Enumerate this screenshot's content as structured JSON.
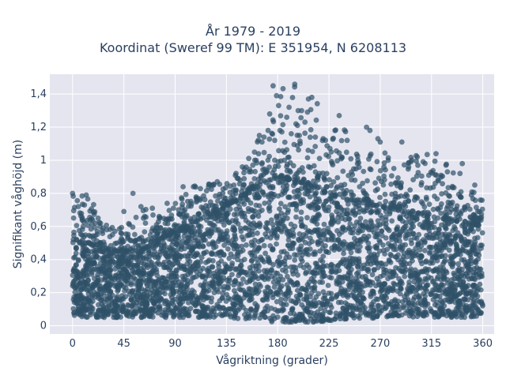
{
  "chart_data": {
    "type": "scatter",
    "title_line1": "År 1979 - 2019",
    "title_line2": "Koordinat (Sweref 99 TM): E 351954, N 6208113",
    "xlabel": "Vågriktning (grader)",
    "ylabel": "Signifikant våghöjd (m)",
    "xlim": [
      -20,
      370
    ],
    "ylim": [
      -0.05,
      1.52
    ],
    "x_ticks": [
      0,
      45,
      90,
      135,
      180,
      225,
      270,
      315,
      360
    ],
    "y_ticks": [
      0,
      0.2,
      0.4,
      0.6,
      0.8,
      1.0,
      1.2,
      1.4
    ],
    "y_tick_labels": [
      "0",
      "0,2",
      "0,4",
      "0,6",
      "0,8",
      "1",
      "1,2",
      "1,4"
    ],
    "grid": true,
    "marker_color": "#2f5168",
    "background_color": "#e5e5f0",
    "envelope": {
      "x": [
        0,
        15,
        30,
        45,
        60,
        75,
        90,
        105,
        120,
        135,
        150,
        165,
        180,
        195,
        210,
        225,
        240,
        255,
        270,
        285,
        300,
        315,
        330,
        345,
        360
      ],
      "dense_min": [
        0.06,
        0.05,
        0.05,
        0.05,
        0.05,
        0.05,
        0.05,
        0.05,
        0.05,
        0.05,
        0.04,
        0.03,
        0.02,
        0.02,
        0.02,
        0.03,
        0.04,
        0.04,
        0.05,
        0.05,
        0.05,
        0.05,
        0.05,
        0.05,
        0.06
      ],
      "dense_max": [
        0.5,
        0.5,
        0.45,
        0.45,
        0.45,
        0.52,
        0.56,
        0.62,
        0.66,
        0.72,
        0.78,
        0.85,
        0.9,
        0.88,
        0.84,
        0.8,
        0.76,
        0.74,
        0.72,
        0.7,
        0.68,
        0.66,
        0.64,
        0.62,
        0.6
      ],
      "max": [
        0.8,
        0.79,
        0.62,
        0.62,
        0.72,
        0.66,
        0.74,
        0.84,
        0.87,
        0.88,
        0.96,
        1.16,
        1.46,
        1.46,
        1.38,
        1.27,
        1.19,
        1.0,
        1.13,
        0.96,
        1.04,
        1.04,
        0.98,
        0.85,
        0.76
      ]
    },
    "outliers": [
      {
        "x": 176,
        "y": 1.45
      },
      {
        "x": 195,
        "y": 1.46
      },
      {
        "x": 179,
        "y": 1.39
      },
      {
        "x": 210,
        "y": 1.38
      },
      {
        "x": 207,
        "y": 1.37
      },
      {
        "x": 190,
        "y": 1.32
      },
      {
        "x": 198,
        "y": 1.3
      },
      {
        "x": 201,
        "y": 1.3
      },
      {
        "x": 234,
        "y": 1.27
      },
      {
        "x": 173,
        "y": 1.28
      },
      {
        "x": 196,
        "y": 1.22
      },
      {
        "x": 188,
        "y": 1.26
      },
      {
        "x": 258,
        "y": 1.2
      },
      {
        "x": 261,
        "y": 1.18
      },
      {
        "x": 182,
        "y": 1.18
      },
      {
        "x": 268,
        "y": 1.13
      },
      {
        "x": 270,
        "y": 1.11
      },
      {
        "x": 289,
        "y": 1.11
      },
      {
        "x": 199,
        "y": 1.15
      },
      {
        "x": 213,
        "y": 1.14
      },
      {
        "x": 220,
        "y": 1.13
      },
      {
        "x": 241,
        "y": 1.12
      },
      {
        "x": 164,
        "y": 1.15
      },
      {
        "x": 168,
        "y": 1.14
      },
      {
        "x": 319,
        "y": 1.04
      },
      {
        "x": 342,
        "y": 0.98
      },
      {
        "x": 303,
        "y": 0.97
      },
      {
        "x": 277,
        "y": 1.0
      },
      {
        "x": 282,
        "y": 0.95
      },
      {
        "x": 295,
        "y": 0.96
      },
      {
        "x": 329,
        "y": 0.93
      },
      {
        "x": 340,
        "y": 0.92
      },
      {
        "x": 250,
        "y": 0.98
      },
      {
        "x": 227,
        "y": 1.05
      },
      {
        "x": 236,
        "y": 1.02
      },
      {
        "x": 0,
        "y": 0.8
      },
      {
        "x": 12,
        "y": 0.79
      },
      {
        "x": 53,
        "y": 0.8
      },
      {
        "x": 83,
        "y": 0.74
      },
      {
        "x": 97,
        "y": 0.84
      },
      {
        "x": 106,
        "y": 0.84
      },
      {
        "x": 127,
        "y": 0.87
      },
      {
        "x": 149,
        "y": 0.96
      },
      {
        "x": 155,
        "y": 0.93
      },
      {
        "x": 353,
        "y": 0.85
      },
      {
        "x": 358,
        "y": 0.76
      },
      {
        "x": 350,
        "y": 0.79
      },
      {
        "x": 306,
        "y": 0.85
      },
      {
        "x": 60,
        "y": 0.72
      },
      {
        "x": 70,
        "y": 0.71
      },
      {
        "x": 5,
        "y": 0.72
      },
      {
        "x": 45,
        "y": 0.69
      },
      {
        "x": 76,
        "y": 0.66
      },
      {
        "x": 93,
        "y": 0.7
      },
      {
        "x": 112,
        "y": 0.76
      },
      {
        "x": 20,
        "y": 0.62
      },
      {
        "x": 30,
        "y": 0.58
      },
      {
        "x": 35,
        "y": 0.55
      },
      {
        "x": 64,
        "y": 0.62
      },
      {
        "x": 24,
        "y": 0.6
      }
    ]
  }
}
